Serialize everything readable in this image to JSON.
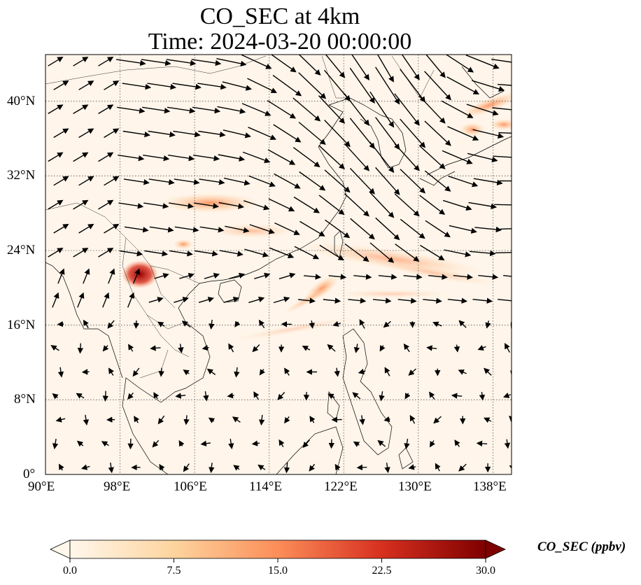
{
  "title": {
    "line1": "CO_SEC at 4km",
    "line2": "Time: 2024-03-20 00:00:00"
  },
  "map": {
    "projection": "PlateCarree",
    "lon_range": [
      90,
      140
    ],
    "lat_range": [
      0,
      45
    ],
    "gridlines": true,
    "coastlines": true,
    "borders": true,
    "lon_ticks": [
      "90°E",
      "98°E",
      "106°E",
      "114°E",
      "122°E",
      "130°E",
      "138°E"
    ],
    "lat_ticks": [
      "0°",
      "8°N",
      "16°N",
      "24°N",
      "32°N",
      "40°N"
    ],
    "field_name": "CO_SEC",
    "vector_field": "wind"
  },
  "colorbar": {
    "label": "CO_SEC (ppbv)",
    "colormap": "OrRd",
    "ticks": [
      "0.0",
      "7.5",
      "15.0",
      "22.5",
      "30.0"
    ],
    "range": [
      0,
      30
    ],
    "extend": "both",
    "colors": [
      "#fff7ec",
      "#fdd49e",
      "#fc8d59",
      "#d7301f",
      "#7f0000"
    ]
  }
}
